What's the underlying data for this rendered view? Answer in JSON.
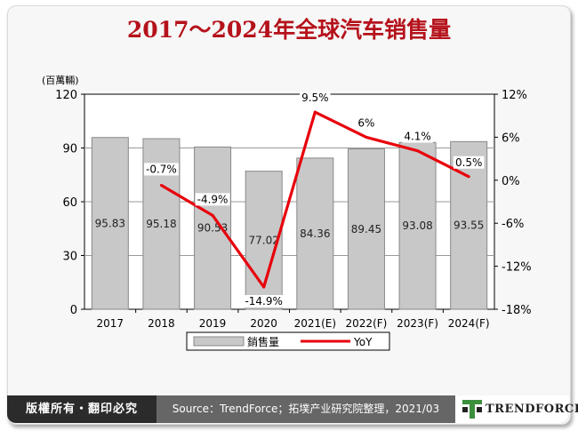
{
  "title": "2017～2024年全球汽车销售量",
  "chart_data": {
    "type": "bar+line",
    "categories": [
      "2017",
      "2018",
      "2019",
      "2020",
      "2021(E)",
      "2022(F)",
      "2023(F)",
      "2024(F)"
    ],
    "series": [
      {
        "name": "銷售量",
        "type": "bar",
        "axis": "left",
        "values": [
          95.83,
          95.18,
          90.53,
          77.02,
          84.36,
          89.45,
          93.08,
          93.55
        ],
        "labels": [
          "95.83",
          "95.18",
          "90.53",
          "77.02",
          "84.36",
          "89.45",
          "93.08",
          "93.55"
        ],
        "color": "#c8c8c8"
      },
      {
        "name": "YoY",
        "type": "line",
        "axis": "right",
        "values": [
          null,
          -0.7,
          -4.9,
          -14.9,
          9.5,
          6,
          4.1,
          0.5
        ],
        "labels": [
          "",
          "-0.7%",
          "-4.9%",
          "-14.9%",
          "9.5%",
          "6%",
          "4.1%",
          "0.5%"
        ],
        "color": "#e8000b"
      }
    ],
    "ylabel": "(百萬輛)",
    "ylim": [
      0,
      120
    ],
    "yticks": [
      "0",
      "30",
      "60",
      "90",
      "120"
    ],
    "y2lim": [
      -18,
      12
    ],
    "y2ticks": [
      "-18%",
      "-12%",
      "-6%",
      "0%",
      "6%",
      "12%"
    ],
    "legend_position": "bottom",
    "grid": true
  },
  "footer": {
    "rights": "版權所有・翻印必究",
    "source": "Source：TrendForce；拓墣产业研究院整理，2021/03",
    "brand": "TRENDFORCE"
  }
}
